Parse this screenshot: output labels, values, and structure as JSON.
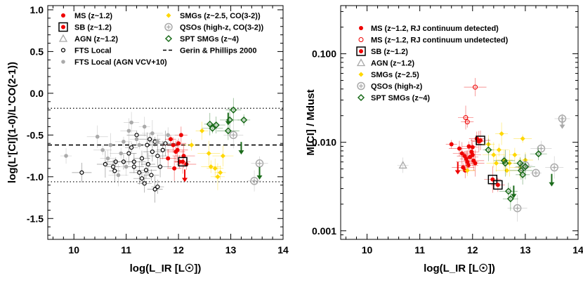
{
  "chart_data": [
    {
      "type": "scatter",
      "xlabel": "log(L_IR [L☉])",
      "ylabel": "log(L'[CI](1-0)/L'CO(2-1))",
      "xlim": [
        9.5,
        14.0
      ],
      "ylim": [
        -1.75,
        1.05
      ],
      "x_ticks": [
        10,
        11,
        12,
        13,
        14
      ],
      "y_ticks": [
        -1.5,
        -1.0,
        -0.5,
        0.0,
        0.5,
        1.0
      ],
      "y_tick_labels": [
        "-1.5",
        "-1.0",
        "-0.5",
        "0.0",
        "0.5",
        "1.0"
      ],
      "reference_lines": [
        {
          "name": "Gerin & Phillips 2000",
          "style": "dashed",
          "y": -0.62
        },
        {
          "style": "dotted",
          "y": -0.18
        },
        {
          "style": "dotted",
          "y": -1.06
        }
      ],
      "legend": [
        {
          "label": "MS (z~1.2)",
          "marker": "red-dot"
        },
        {
          "label": "SB (z~1.2)",
          "marker": "boxed-red-dot"
        },
        {
          "label": "AGN (z~1.2)",
          "marker": "gray-triangle"
        },
        {
          "label": "FTS Local",
          "marker": "black-circle"
        },
        {
          "label": "FTS Local (AGN VCV+10)",
          "marker": "gray-dot"
        },
        {
          "label": "SMGs (z~2.5, CO(3-2))",
          "marker": "yellow-diamond"
        },
        {
          "label": "QSOs (high-z, CO(3-2))",
          "marker": "gray-circle-plus"
        },
        {
          "label": "SPT SMGs (z~4)",
          "marker": "green-diamond"
        },
        {
          "label": "Gerin & Phillips 2000",
          "marker": "dashed-line"
        }
      ],
      "series": [
        {
          "name": "MS (z~1.2)",
          "x": [
            11.85,
            11.9,
            11.95,
            12.0,
            12.05,
            12.1,
            12.15,
            11.8,
            11.92,
            12.02,
            11.98
          ],
          "y": [
            -0.55,
            -0.62,
            -0.7,
            -0.6,
            -0.5,
            -0.75,
            -0.85,
            -0.78,
            -0.9,
            -0.82,
            -0.68
          ]
        },
        {
          "name": "SB (z~1.2)",
          "x": [
            12.08
          ],
          "y": [
            -0.82
          ]
        },
        {
          "name": "FTS Local",
          "x": [
            10.15,
            10.6,
            10.75,
            10.78,
            10.8,
            10.95,
            11.05,
            11.1,
            11.15,
            11.25,
            11.3,
            11.35,
            11.4,
            11.45,
            11.5,
            11.55,
            11.6,
            11.65,
            11.2,
            11.3,
            11.42,
            11.55,
            11.38,
            11.6,
            11.48,
            11.7,
            11.75,
            11.15
          ],
          "y": [
            -0.95,
            -0.85,
            -0.88,
            -0.93,
            -0.82,
            -0.82,
            -0.72,
            -0.65,
            -0.82,
            -0.95,
            -1.02,
            -1.08,
            -0.62,
            -0.55,
            -0.7,
            -1.15,
            -1.12,
            -0.88,
            -0.5,
            -0.78,
            -0.85,
            -0.58,
            -0.92,
            -0.75,
            -0.98,
            -0.68,
            -0.6,
            -0.88
          ]
        },
        {
          "name": "FTS Local (AGN VCV+10)",
          "x": [
            9.85,
            10.45,
            10.55,
            10.65,
            10.7,
            10.9,
            11.0,
            11.05,
            11.2,
            11.35,
            11.5,
            11.6,
            11.1,
            11.25,
            11.8,
            10.85,
            10.95
          ],
          "y": [
            -0.75,
            -0.52,
            -0.68,
            -0.78,
            -0.62,
            -0.72,
            -0.88,
            -0.45,
            -0.55,
            -0.4,
            -0.48,
            -0.58,
            -0.35,
            -0.62,
            -0.5,
            -0.98,
            -0.58
          ]
        },
        {
          "name": "SMGs (z~2.5, CO(3-2))",
          "x": [
            12.25,
            12.45,
            12.58,
            12.62,
            12.7,
            12.75,
            12.8,
            12.85
          ],
          "y": [
            -0.62,
            -0.45,
            -0.72,
            -0.88,
            -0.9,
            -1.0,
            -0.95,
            -0.75
          ]
        },
        {
          "name": "QSOs (high-z, CO(3-2))",
          "x": [
            13.05,
            13.55,
            13.45
          ],
          "y": [
            -0.5,
            -0.84,
            -1.05
          ]
        },
        {
          "name": "SPT SMGs (z~4)",
          "x": [
            12.6,
            12.65,
            12.72,
            13.05,
            13.25,
            12.95,
            12.98
          ],
          "y": [
            -0.37,
            -0.42,
            -0.38,
            -0.2,
            -0.32,
            -0.45,
            -0.32
          ]
        }
      ],
      "upper_limits": [
        {
          "series": "SPT SMGs (z~4)",
          "x": 12.95,
          "y": -0.3
        },
        {
          "series": "SPT SMGs (z~4)",
          "x": 13.2,
          "y": -0.65
        },
        {
          "series": "SPT SMGs (z~4)",
          "x": 13.55,
          "y": -0.95
        },
        {
          "series": "MS (z~1.2)",
          "x": 12.12,
          "y": -0.98
        }
      ]
    },
    {
      "type": "scatter",
      "xlabel": "log(L_IR [L☉])",
      "ylabel": "M[CI] / Mdust",
      "yscale": "log",
      "xlim": [
        9.5,
        14.0
      ],
      "ylim": [
        0.0008,
        0.35
      ],
      "x_ticks": [
        10,
        11,
        12,
        13,
        14
      ],
      "y_ticks": [
        0.001,
        0.01,
        0.1
      ],
      "y_tick_labels": [
        "0.001",
        "0.010",
        "0.100"
      ],
      "legend": [
        {
          "label": "MS (z~1.2, RJ continuum detected)",
          "marker": "red-dot"
        },
        {
          "label": "MS (z~1.2, RJ continuum undetected)",
          "marker": "red-open-circle"
        },
        {
          "label": "SB (z~1.2)",
          "marker": "boxed-red-dot"
        },
        {
          "label": "AGN (z~1.2)",
          "marker": "gray-triangle"
        },
        {
          "label": "SMGs (z~2.5)",
          "marker": "yellow-diamond"
        },
        {
          "label": "QSOs (high-z)",
          "marker": "gray-circle-plus"
        },
        {
          "label": "SPT SMGs (z~4)",
          "marker": "green-diamond"
        }
      ],
      "series": [
        {
          "name": "MS (z~1.2, RJ continuum detected)",
          "x": [
            11.6,
            11.75,
            11.8,
            11.85,
            11.88,
            11.9,
            11.92,
            11.95,
            11.98,
            12.0,
            12.02,
            12.05,
            12.08,
            12.12,
            11.82,
            11.86,
            12.0,
            11.93
          ],
          "y": [
            0.0095,
            0.0085,
            0.0075,
            0.007,
            0.0065,
            0.006,
            0.0055,
            0.0068,
            0.0078,
            0.0088,
            0.0062,
            0.0058,
            0.011,
            0.0102,
            0.0052,
            0.0048,
            0.0072,
            0.009
          ]
        },
        {
          "name": "MS (z~1.2, RJ continuum undetected)",
          "x": [
            11.87,
            11.9,
            12.05
          ],
          "y": [
            0.019,
            0.017,
            0.042
          ]
        },
        {
          "name": "SB (z~1.2)",
          "x": [
            12.15,
            12.38,
            12.48
          ],
          "y": [
            0.0105,
            0.0038,
            0.0033
          ]
        },
        {
          "name": "AGN (z~1.2)",
          "x": [
            10.68
          ],
          "y": [
            0.0055
          ]
        },
        {
          "name": "SMGs (z~2.5)",
          "x": [
            11.9,
            12.3,
            12.4,
            12.5,
            12.6,
            12.7,
            12.8,
            12.9,
            12.95,
            13.0,
            12.55,
            12.65,
            12.45
          ],
          "y": [
            0.0048,
            0.0095,
            0.0072,
            0.0082,
            0.0063,
            0.0058,
            0.0072,
            0.0052,
            0.011,
            0.0063,
            0.0125,
            0.0048,
            0.0058
          ]
        },
        {
          "name": "QSOs (high-z)",
          "x": [
            12.85,
            12.95,
            13.0,
            13.2,
            13.3,
            13.55,
            13.7
          ],
          "y": [
            0.0018,
            0.0052,
            0.0055,
            0.0045,
            0.0085,
            0.0052,
            0.0185
          ]
        },
        {
          "name": "SPT SMGs (z~4)",
          "x": [
            12.3,
            12.6,
            12.68,
            12.72,
            12.9,
            12.92,
            13.0,
            13.25,
            12.95,
            12.62
          ],
          "y": [
            0.0082,
            0.0062,
            0.0028,
            0.0023,
            0.0058,
            0.0048,
            0.0053,
            0.0074,
            0.0043,
            0.0058
          ]
        }
      ],
      "upper_limits": [
        {
          "series": "MS (z~1.2, RJ continuum detected)",
          "x": 11.72,
          "y": 0.0052
        },
        {
          "series": "SPT SMGs (z~4)",
          "x": 12.78,
          "y": 0.0028
        },
        {
          "series": "SPT SMGs (z~4)",
          "x": 13.5,
          "y": 0.0038
        },
        {
          "series": "QSOs (high-z)",
          "x": 13.7,
          "y": 0.017
        }
      ]
    }
  ]
}
